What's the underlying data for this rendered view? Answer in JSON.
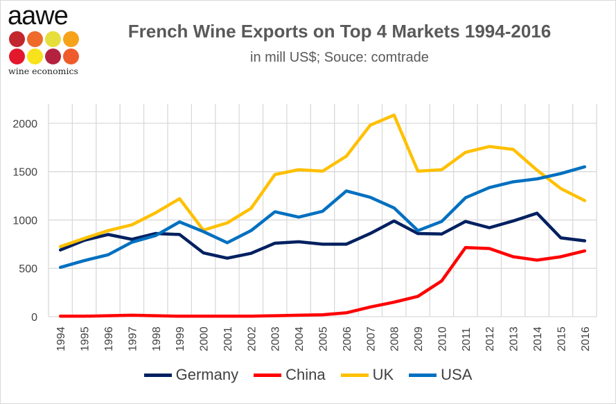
{
  "logo": {
    "word": "aawe",
    "subtitle": "wine economics",
    "dot_colors": [
      "#c1272d",
      "#ef6b2c",
      "#e6de3a",
      "#f7a21b",
      "#e3182d",
      "#f7e21b",
      "#b5223f",
      "#ef5b2c"
    ]
  },
  "chart_data": {
    "type": "line",
    "title": "French Wine Exports on Top 4 Markets 1994-2016",
    "subtitle": "in mill US$; Souce: comtrade",
    "xlabel": "",
    "ylabel": "",
    "ylim": [
      0,
      2200
    ],
    "yticks": [
      0,
      500,
      1000,
      1500,
      2000
    ],
    "grid": true,
    "legend_position": "bottom",
    "categories": [
      "1994",
      "1995",
      "1996",
      "1997",
      "1998",
      "1999",
      "2000",
      "2001",
      "2002",
      "2003",
      "2004",
      "2005",
      "2006",
      "2007",
      "2008",
      "2009",
      "2010",
      "2011",
      "2012",
      "2013",
      "2014",
      "2015",
      "2016"
    ],
    "series": [
      {
        "name": "Germany",
        "color": "#002060",
        "values": [
          690,
          790,
          850,
          800,
          860,
          850,
          660,
          605,
          655,
          760,
          775,
          750,
          750,
          860,
          990,
          860,
          855,
          985,
          920,
          990,
          1070,
          815,
          785
        ]
      },
      {
        "name": "China",
        "color": "#ff0000",
        "values": [
          5,
          5,
          10,
          15,
          10,
          5,
          5,
          5,
          5,
          10,
          15,
          20,
          40,
          100,
          150,
          210,
          370,
          715,
          705,
          620,
          585,
          620,
          680
        ]
      },
      {
        "name": "UK",
        "color": "#ffc000",
        "values": [
          725,
          810,
          890,
          950,
          1075,
          1220,
          895,
          970,
          1120,
          1470,
          1520,
          1505,
          1660,
          1980,
          2085,
          1505,
          1520,
          1700,
          1760,
          1730,
          1515,
          1325,
          1200
        ]
      },
      {
        "name": "USA",
        "color": "#0070c0",
        "values": [
          510,
          580,
          640,
          770,
          840,
          980,
          880,
          765,
          890,
          1085,
          1030,
          1090,
          1300,
          1235,
          1125,
          890,
          985,
          1230,
          1335,
          1395,
          1425,
          1480,
          1550
        ]
      }
    ]
  }
}
